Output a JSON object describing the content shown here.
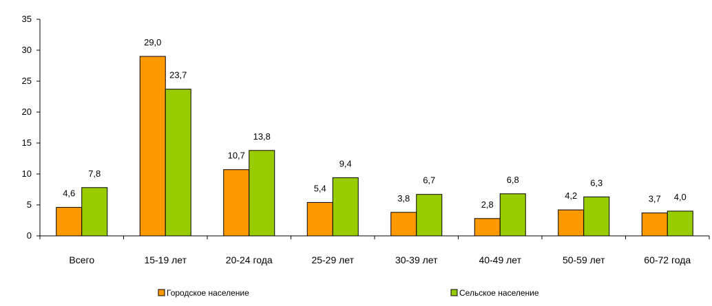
{
  "chart_data": {
    "type": "bar",
    "categories": [
      "Всего",
      "15-19 лет",
      "20-24 года",
      "25-29 лет",
      "30-39 лет",
      "40-49 лет",
      "50-59 лет",
      "60-72 года"
    ],
    "series": [
      {
        "name": "Городское население",
        "color": "#ff9900",
        "values": [
          4.6,
          29.0,
          10.7,
          5.4,
          3.8,
          2.8,
          4.2,
          3.7
        ],
        "labels": [
          "4,6",
          "29,0",
          "10,7",
          "5,4",
          "3,8",
          "2,8",
          "4,2",
          "3,7"
        ]
      },
      {
        "name": "Сельское население",
        "color": "#99cc00",
        "values": [
          7.8,
          23.7,
          13.8,
          9.4,
          6.7,
          6.8,
          6.3,
          4.0
        ],
        "labels": [
          "7,8",
          "23,7",
          "13,8",
          "9,4",
          "6,7",
          "6,8",
          "6,3",
          "4,0"
        ]
      }
    ],
    "yticks": [
      "0",
      "5",
      "10",
      "15",
      "20",
      "25",
      "30",
      "35"
    ],
    "ylim": [
      0,
      35
    ],
    "grid": false,
    "legend_position": "bottom"
  }
}
